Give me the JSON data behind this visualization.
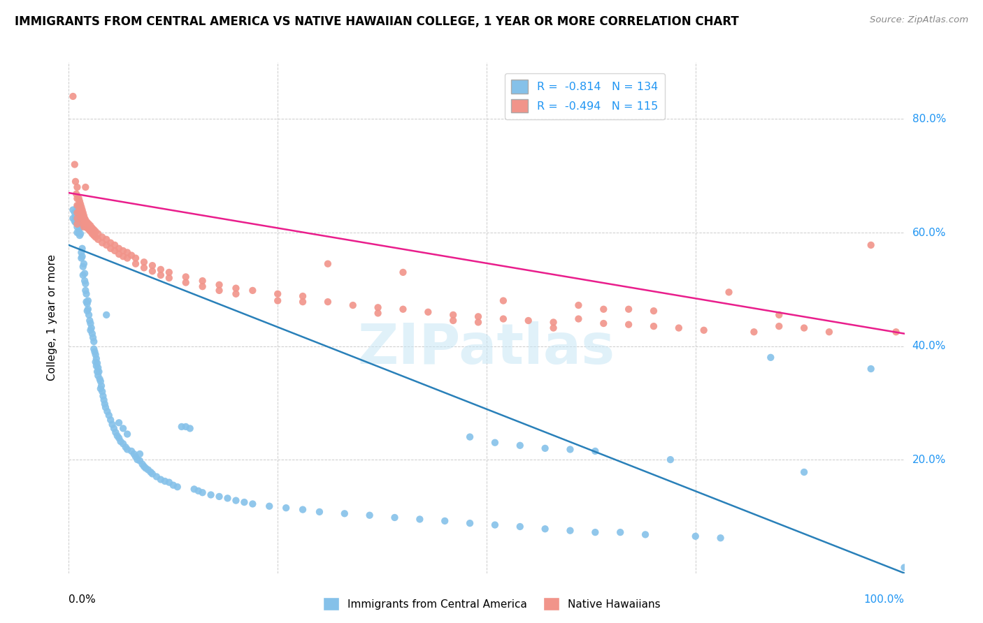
{
  "title": "IMMIGRANTS FROM CENTRAL AMERICA VS NATIVE HAWAIIAN COLLEGE, 1 YEAR OR MORE CORRELATION CHART",
  "source": "Source: ZipAtlas.com",
  "ylabel": "College, 1 year or more",
  "y_ticks": [
    "20.0%",
    "40.0%",
    "60.0%",
    "80.0%"
  ],
  "y_tick_values": [
    0.2,
    0.4,
    0.6,
    0.8
  ],
  "legend_blue_r": "-0.814",
  "legend_blue_n": "134",
  "legend_pink_r": "-0.494",
  "legend_pink_n": "115",
  "blue_color": "#85c1e9",
  "pink_color": "#f1948a",
  "blue_line_color": "#2980b9",
  "pink_line_color": "#e91e8c",
  "blue_scatter": [
    [
      0.005,
      0.64
    ],
    [
      0.005,
      0.625
    ],
    [
      0.007,
      0.635
    ],
    [
      0.007,
      0.62
    ],
    [
      0.008,
      0.628
    ],
    [
      0.008,
      0.618
    ],
    [
      0.009,
      0.622
    ],
    [
      0.01,
      0.645
    ],
    [
      0.01,
      0.632
    ],
    [
      0.01,
      0.618
    ],
    [
      0.01,
      0.61
    ],
    [
      0.01,
      0.6
    ],
    [
      0.012,
      0.615
    ],
    [
      0.012,
      0.6
    ],
    [
      0.013,
      0.608
    ],
    [
      0.013,
      0.595
    ],
    [
      0.014,
      0.61
    ],
    [
      0.014,
      0.598
    ],
    [
      0.015,
      0.565
    ],
    [
      0.015,
      0.555
    ],
    [
      0.016,
      0.572
    ],
    [
      0.016,
      0.558
    ],
    [
      0.017,
      0.54
    ],
    [
      0.017,
      0.525
    ],
    [
      0.018,
      0.545
    ],
    [
      0.019,
      0.528
    ],
    [
      0.019,
      0.515
    ],
    [
      0.02,
      0.51
    ],
    [
      0.02,
      0.498
    ],
    [
      0.021,
      0.492
    ],
    [
      0.021,
      0.478
    ],
    [
      0.022,
      0.475
    ],
    [
      0.022,
      0.462
    ],
    [
      0.023,
      0.48
    ],
    [
      0.023,
      0.465
    ],
    [
      0.024,
      0.455
    ],
    [
      0.025,
      0.445
    ],
    [
      0.026,
      0.44
    ],
    [
      0.026,
      0.428
    ],
    [
      0.027,
      0.432
    ],
    [
      0.028,
      0.422
    ],
    [
      0.029,
      0.415
    ],
    [
      0.03,
      0.408
    ],
    [
      0.03,
      0.395
    ],
    [
      0.031,
      0.39
    ],
    [
      0.032,
      0.385
    ],
    [
      0.032,
      0.372
    ],
    [
      0.033,
      0.378
    ],
    [
      0.033,
      0.365
    ],
    [
      0.034,
      0.37
    ],
    [
      0.034,
      0.355
    ],
    [
      0.035,
      0.362
    ],
    [
      0.035,
      0.348
    ],
    [
      0.036,
      0.355
    ],
    [
      0.037,
      0.342
    ],
    [
      0.038,
      0.338
    ],
    [
      0.038,
      0.325
    ],
    [
      0.039,
      0.33
    ],
    [
      0.04,
      0.32
    ],
    [
      0.041,
      0.312
    ],
    [
      0.042,
      0.305
    ],
    [
      0.043,
      0.298
    ],
    [
      0.044,
      0.292
    ],
    [
      0.045,
      0.455
    ],
    [
      0.046,
      0.285
    ],
    [
      0.048,
      0.278
    ],
    [
      0.05,
      0.27
    ],
    [
      0.052,
      0.262
    ],
    [
      0.054,
      0.255
    ],
    [
      0.056,
      0.248
    ],
    [
      0.058,
      0.242
    ],
    [
      0.06,
      0.265
    ],
    [
      0.06,
      0.238
    ],
    [
      0.062,
      0.232
    ],
    [
      0.065,
      0.255
    ],
    [
      0.065,
      0.228
    ],
    [
      0.068,
      0.222
    ],
    [
      0.07,
      0.245
    ],
    [
      0.07,
      0.218
    ],
    [
      0.075,
      0.215
    ],
    [
      0.078,
      0.21
    ],
    [
      0.08,
      0.205
    ],
    [
      0.082,
      0.2
    ],
    [
      0.085,
      0.21
    ],
    [
      0.085,
      0.198
    ],
    [
      0.088,
      0.192
    ],
    [
      0.09,
      0.188
    ],
    [
      0.092,
      0.185
    ],
    [
      0.095,
      0.182
    ],
    [
      0.098,
      0.178
    ],
    [
      0.1,
      0.175
    ],
    [
      0.105,
      0.17
    ],
    [
      0.11,
      0.165
    ],
    [
      0.115,
      0.162
    ],
    [
      0.12,
      0.16
    ],
    [
      0.125,
      0.155
    ],
    [
      0.13,
      0.152
    ],
    [
      0.135,
      0.258
    ],
    [
      0.14,
      0.258
    ],
    [
      0.145,
      0.255
    ],
    [
      0.15,
      0.148
    ],
    [
      0.155,
      0.145
    ],
    [
      0.16,
      0.142
    ],
    [
      0.17,
      0.138
    ],
    [
      0.18,
      0.135
    ],
    [
      0.19,
      0.132
    ],
    [
      0.2,
      0.128
    ],
    [
      0.21,
      0.125
    ],
    [
      0.22,
      0.122
    ],
    [
      0.24,
      0.118
    ],
    [
      0.26,
      0.115
    ],
    [
      0.28,
      0.112
    ],
    [
      0.3,
      0.108
    ],
    [
      0.33,
      0.105
    ],
    [
      0.36,
      0.102
    ],
    [
      0.39,
      0.098
    ],
    [
      0.42,
      0.095
    ],
    [
      0.45,
      0.092
    ],
    [
      0.48,
      0.24
    ],
    [
      0.48,
      0.088
    ],
    [
      0.51,
      0.23
    ],
    [
      0.51,
      0.085
    ],
    [
      0.54,
      0.225
    ],
    [
      0.54,
      0.082
    ],
    [
      0.57,
      0.22
    ],
    [
      0.57,
      0.078
    ],
    [
      0.6,
      0.218
    ],
    [
      0.6,
      0.075
    ],
    [
      0.63,
      0.215
    ],
    [
      0.63,
      0.072
    ],
    [
      0.66,
      0.072
    ],
    [
      0.69,
      0.068
    ],
    [
      0.72,
      0.2
    ],
    [
      0.75,
      0.065
    ],
    [
      0.78,
      0.062
    ],
    [
      0.84,
      0.38
    ],
    [
      0.88,
      0.178
    ],
    [
      0.96,
      0.36
    ],
    [
      1.0,
      0.01
    ]
  ],
  "pink_scatter": [
    [
      0.005,
      0.84
    ],
    [
      0.007,
      0.72
    ],
    [
      0.008,
      0.69
    ],
    [
      0.009,
      0.668
    ],
    [
      0.01,
      0.68
    ],
    [
      0.01,
      0.66
    ],
    [
      0.01,
      0.648
    ],
    [
      0.01,
      0.635
    ],
    [
      0.01,
      0.625
    ],
    [
      0.01,
      0.615
    ],
    [
      0.012,
      0.66
    ],
    [
      0.012,
      0.648
    ],
    [
      0.012,
      0.638
    ],
    [
      0.013,
      0.655
    ],
    [
      0.013,
      0.642
    ],
    [
      0.014,
      0.65
    ],
    [
      0.014,
      0.638
    ],
    [
      0.014,
      0.628
    ],
    [
      0.015,
      0.645
    ],
    [
      0.015,
      0.635
    ],
    [
      0.015,
      0.622
    ],
    [
      0.016,
      0.64
    ],
    [
      0.016,
      0.628
    ],
    [
      0.017,
      0.635
    ],
    [
      0.017,
      0.625
    ],
    [
      0.017,
      0.615
    ],
    [
      0.018,
      0.63
    ],
    [
      0.018,
      0.62
    ],
    [
      0.018,
      0.61
    ],
    [
      0.019,
      0.625
    ],
    [
      0.019,
      0.615
    ],
    [
      0.02,
      0.68
    ],
    [
      0.02,
      0.622
    ],
    [
      0.02,
      0.612
    ],
    [
      0.022,
      0.618
    ],
    [
      0.022,
      0.608
    ],
    [
      0.024,
      0.615
    ],
    [
      0.024,
      0.605
    ],
    [
      0.026,
      0.612
    ],
    [
      0.026,
      0.602
    ],
    [
      0.028,
      0.608
    ],
    [
      0.028,
      0.598
    ],
    [
      0.03,
      0.605
    ],
    [
      0.03,
      0.595
    ],
    [
      0.032,
      0.602
    ],
    [
      0.032,
      0.592
    ],
    [
      0.035,
      0.598
    ],
    [
      0.035,
      0.588
    ],
    [
      0.04,
      0.592
    ],
    [
      0.04,
      0.582
    ],
    [
      0.045,
      0.588
    ],
    [
      0.045,
      0.578
    ],
    [
      0.05,
      0.582
    ],
    [
      0.05,
      0.572
    ],
    [
      0.055,
      0.578
    ],
    [
      0.055,
      0.568
    ],
    [
      0.06,
      0.572
    ],
    [
      0.06,
      0.562
    ],
    [
      0.065,
      0.568
    ],
    [
      0.065,
      0.558
    ],
    [
      0.07,
      0.565
    ],
    [
      0.07,
      0.555
    ],
    [
      0.075,
      0.56
    ],
    [
      0.08,
      0.555
    ],
    [
      0.08,
      0.545
    ],
    [
      0.09,
      0.548
    ],
    [
      0.09,
      0.538
    ],
    [
      0.1,
      0.542
    ],
    [
      0.1,
      0.532
    ],
    [
      0.11,
      0.535
    ],
    [
      0.11,
      0.525
    ],
    [
      0.12,
      0.53
    ],
    [
      0.12,
      0.52
    ],
    [
      0.14,
      0.522
    ],
    [
      0.14,
      0.512
    ],
    [
      0.16,
      0.515
    ],
    [
      0.16,
      0.505
    ],
    [
      0.18,
      0.508
    ],
    [
      0.18,
      0.498
    ],
    [
      0.2,
      0.502
    ],
    [
      0.2,
      0.492
    ],
    [
      0.22,
      0.498
    ],
    [
      0.25,
      0.492
    ],
    [
      0.25,
      0.48
    ],
    [
      0.28,
      0.488
    ],
    [
      0.28,
      0.478
    ],
    [
      0.31,
      0.545
    ],
    [
      0.31,
      0.478
    ],
    [
      0.34,
      0.472
    ],
    [
      0.37,
      0.468
    ],
    [
      0.37,
      0.458
    ],
    [
      0.4,
      0.53
    ],
    [
      0.4,
      0.465
    ],
    [
      0.43,
      0.46
    ],
    [
      0.46,
      0.455
    ],
    [
      0.46,
      0.445
    ],
    [
      0.49,
      0.452
    ],
    [
      0.49,
      0.442
    ],
    [
      0.52,
      0.48
    ],
    [
      0.52,
      0.448
    ],
    [
      0.55,
      0.445
    ],
    [
      0.58,
      0.442
    ],
    [
      0.58,
      0.432
    ],
    [
      0.61,
      0.472
    ],
    [
      0.61,
      0.448
    ],
    [
      0.64,
      0.465
    ],
    [
      0.64,
      0.44
    ],
    [
      0.67,
      0.465
    ],
    [
      0.67,
      0.438
    ],
    [
      0.7,
      0.462
    ],
    [
      0.7,
      0.435
    ],
    [
      0.73,
      0.432
    ],
    [
      0.76,
      0.428
    ],
    [
      0.79,
      0.495
    ],
    [
      0.82,
      0.425
    ],
    [
      0.85,
      0.455
    ],
    [
      0.85,
      0.435
    ],
    [
      0.88,
      0.432
    ],
    [
      0.91,
      0.425
    ],
    [
      0.96,
      0.578
    ],
    [
      0.99,
      0.425
    ]
  ],
  "blue_line_slope": -0.578,
  "blue_line_intercept": 0.578,
  "pink_line_slope": -0.248,
  "pink_line_intercept": 0.67,
  "watermark": "ZIPatlas",
  "xlim": [
    0,
    1.0
  ],
  "ylim": [
    0,
    0.9
  ],
  "legend_loc_blue": "Immigrants from Central America",
  "legend_loc_pink": "Native Hawaiians",
  "tick_color": "#2196F3",
  "label_color_right": "#2196F3"
}
